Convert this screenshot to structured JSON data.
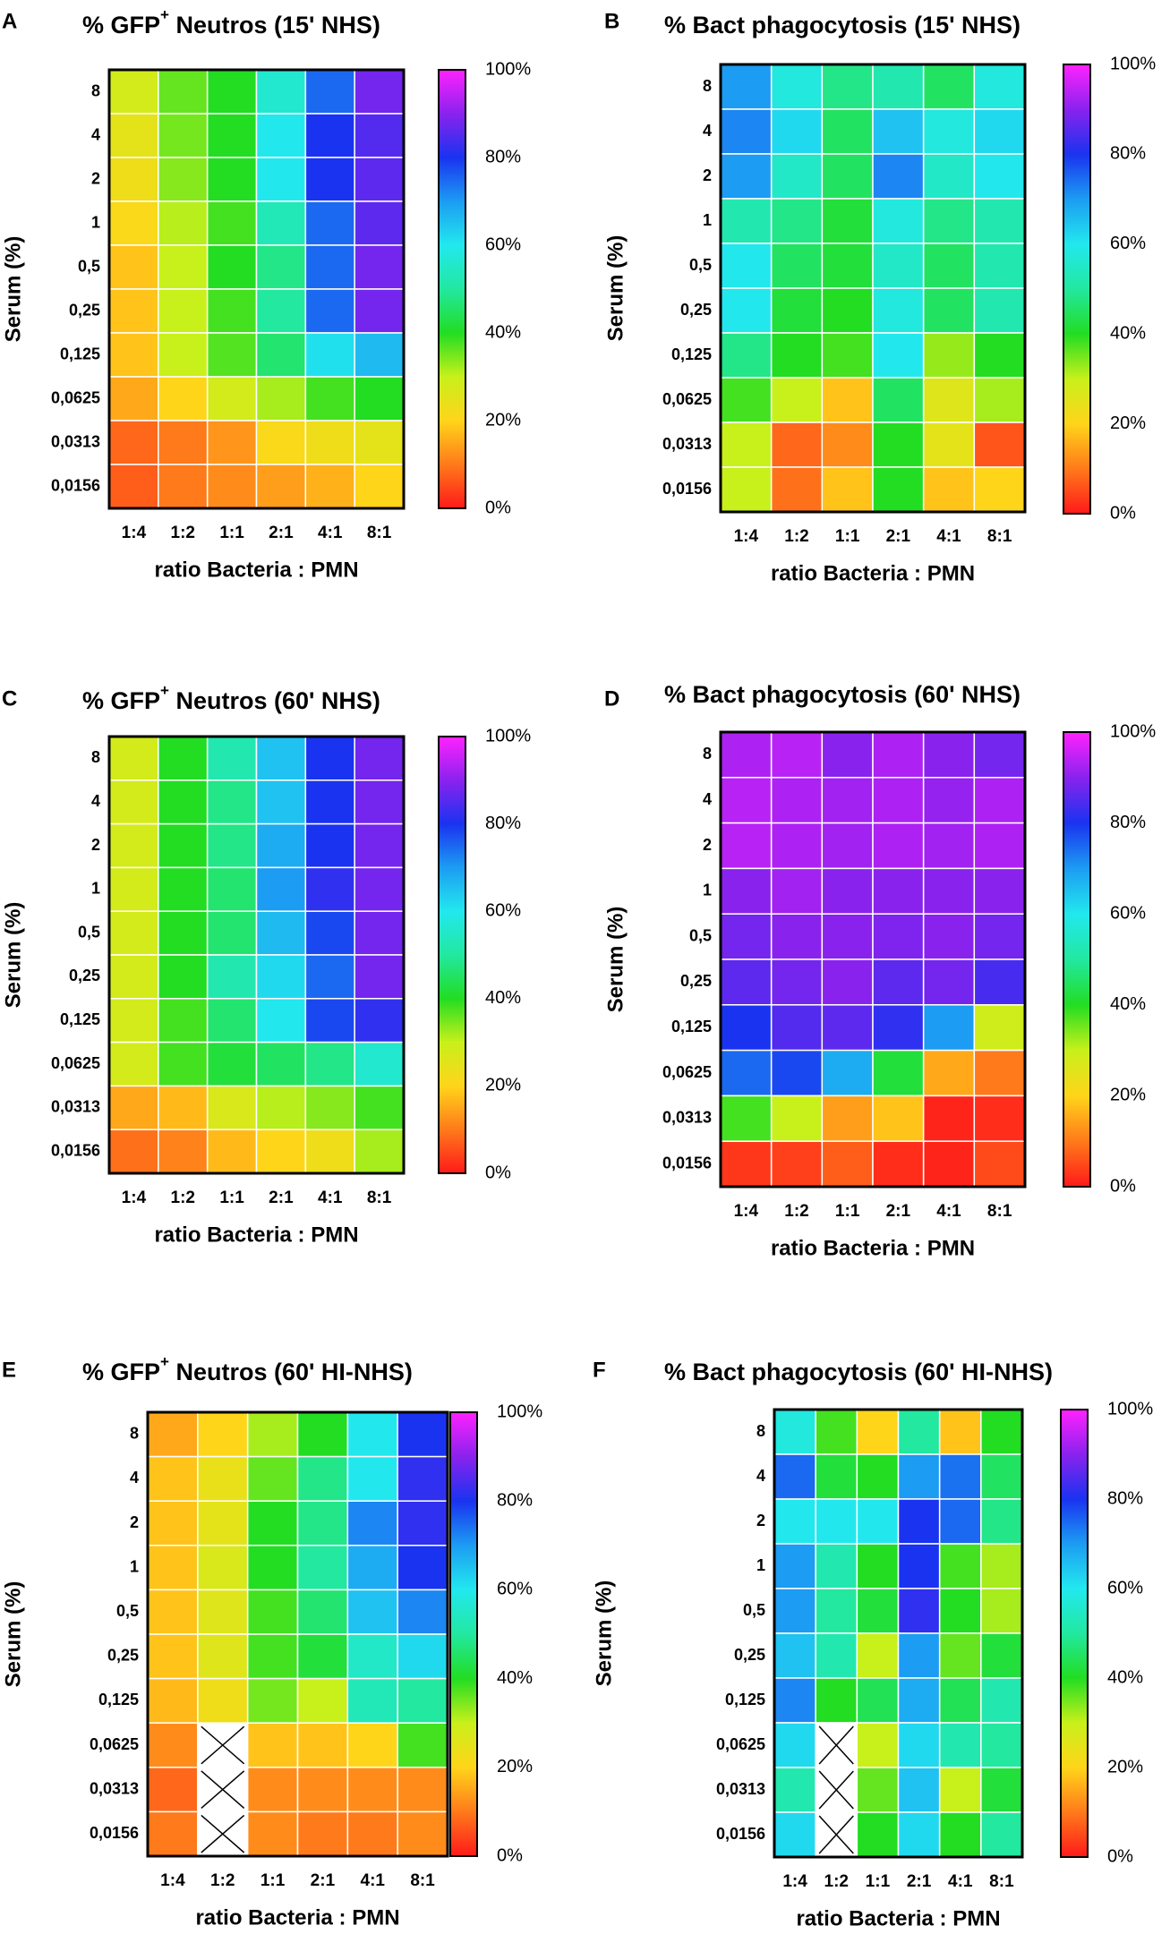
{
  "figure": {
    "colorbar_ticks": [
      "0%",
      "20%",
      "40%",
      "60%",
      "80%",
      "100%"
    ]
  },
  "colors": {
    "0": "#ff1a1a",
    "10": "#ff7a1a",
    "20": "#ffd51a",
    "30": "#c8f01a",
    "40": "#22dd22",
    "50": "#22e8a0",
    "60": "#22e8ee",
    "70": "#1c9cf2",
    "80": "#1a33f0",
    "90": "#8a22ee",
    "100": "#ff22ff",
    "missing": "#ffffff"
  },
  "chart_data": [
    {
      "type": "heatmap",
      "letter": "A",
      "title_pre": "% GFP",
      "title_sup": "+",
      "title_post": " Neutros (15' NHS)",
      "xlabel": "ratio Bacteria : PMN",
      "ylabel": "Serum (%)",
      "categories_x": [
        "1:4",
        "1:2",
        "1:1",
        "2:1",
        "4:1",
        "8:1"
      ],
      "categories_y": [
        "8",
        "4",
        "2",
        "1",
        "0,5",
        "0,25",
        "0,125",
        "0,0625",
        "0,0313",
        "0,0156"
      ],
      "values": [
        [
          28,
          36,
          40,
          56,
          75,
          88
        ],
        [
          25,
          35,
          40,
          60,
          80,
          85
        ],
        [
          23,
          34,
          40,
          60,
          80,
          86
        ],
        [
          21,
          31,
          38,
          53,
          75,
          86
        ],
        [
          18,
          30,
          40,
          48,
          75,
          88
        ],
        [
          18,
          30,
          38,
          50,
          75,
          88
        ],
        [
          18,
          30,
          37,
          46,
          61,
          66
        ],
        [
          15,
          20,
          28,
          32,
          38,
          40
        ],
        [
          8,
          10,
          13,
          21,
          23,
          25
        ],
        [
          7,
          10,
          12,
          14,
          16,
          20
        ]
      ]
    },
    {
      "type": "heatmap",
      "letter": "B",
      "title_pre": "% Bact phagocytosis (15' NHS)",
      "title_sup": "",
      "title_post": "",
      "xlabel": "ratio Bacteria : PMN",
      "ylabel": "Serum (%)",
      "categories_x": [
        "1:4",
        "1:2",
        "1:1",
        "2:1",
        "4:1",
        "8:1"
      ],
      "categories_y": [
        "8",
        "4",
        "2",
        "1",
        "0,5",
        "0,25",
        "0,125",
        "0,0625",
        "0,0313",
        "0,0156"
      ],
      "values": [
        [
          70,
          58,
          48,
          52,
          45,
          58
        ],
        [
          72,
          62,
          45,
          65,
          58,
          62
        ],
        [
          70,
          55,
          45,
          72,
          55,
          60
        ],
        [
          52,
          48,
          42,
          58,
          48,
          52
        ],
        [
          60,
          45,
          42,
          55,
          45,
          52
        ],
        [
          60,
          42,
          40,
          58,
          45,
          52
        ],
        [
          48,
          40,
          38,
          60,
          33,
          40
        ],
        [
          38,
          30,
          18,
          45,
          26,
          32
        ],
        [
          30,
          8,
          12,
          40,
          25,
          6
        ],
        [
          30,
          9,
          18,
          40,
          18,
          20
        ]
      ]
    },
    {
      "type": "heatmap",
      "letter": "C",
      "title_pre": "% GFP",
      "title_sup": "+",
      "title_post": " Neutros (60' NHS)",
      "xlabel": "ratio Bacteria : PMN",
      "ylabel": "Serum (%)",
      "categories_x": [
        "1:4",
        "1:2",
        "1:1",
        "2:1",
        "4:1",
        "8:1"
      ],
      "categories_y": [
        "8",
        "4",
        "2",
        "1",
        "0,5",
        "0,25",
        "0,125",
        "0,0625",
        "0,0313",
        "0,0156"
      ],
      "values": [
        [
          28,
          40,
          52,
          65,
          80,
          88
        ],
        [
          28,
          40,
          48,
          65,
          80,
          88
        ],
        [
          28,
          40,
          48,
          68,
          80,
          88
        ],
        [
          28,
          40,
          46,
          70,
          82,
          88
        ],
        [
          28,
          40,
          46,
          66,
          78,
          88
        ],
        [
          28,
          40,
          52,
          62,
          75,
          88
        ],
        [
          28,
          38,
          46,
          60,
          78,
          82
        ],
        [
          28,
          38,
          42,
          45,
          48,
          56
        ],
        [
          15,
          17,
          27,
          31,
          34,
          38
        ],
        [
          9,
          11,
          17,
          20,
          23,
          32
        ]
      ]
    },
    {
      "type": "heatmap",
      "letter": "D",
      "title_pre": "% Bact phagocytosis (60' NHS)",
      "title_sup": "",
      "title_post": "",
      "xlabel": "ratio Bacteria : PMN",
      "ylabel": "Serum (%)",
      "categories_x": [
        "1:4",
        "1:2",
        "1:1",
        "2:1",
        "4:1",
        "8:1"
      ],
      "categories_y": [
        "8",
        "4",
        "2",
        "1",
        "0,5",
        "0,25",
        "0,125",
        "0,0625",
        "0,0313",
        "0,0156"
      ],
      "values": [
        [
          93,
          94,
          90,
          93,
          90,
          88
        ],
        [
          94,
          93,
          92,
          93,
          91,
          93
        ],
        [
          94,
          93,
          92,
          93,
          92,
          93
        ],
        [
          90,
          92,
          90,
          90,
          90,
          90
        ],
        [
          88,
          90,
          90,
          89,
          90,
          88
        ],
        [
          86,
          88,
          90,
          86,
          88,
          84
        ],
        [
          80,
          85,
          86,
          82,
          70,
          29
        ],
        [
          75,
          78,
          68,
          42,
          15,
          10
        ],
        [
          38,
          30,
          14,
          18,
          1,
          2
        ],
        [
          3,
          4,
          7,
          2,
          1,
          5
        ]
      ]
    },
    {
      "type": "heatmap",
      "letter": "E",
      "title_pre": "% GFP",
      "title_sup": "+",
      "title_post": " Neutros (60' HI-NHS)",
      "xlabel": "ratio Bacteria : PMN",
      "ylabel": "Serum (%)",
      "categories_x": [
        "1:4",
        "1:2",
        "1:1",
        "2:1",
        "4:1",
        "8:1"
      ],
      "categories_y": [
        "8",
        "4",
        "2",
        "1",
        "0,5",
        "0,25",
        "0,125",
        "0,0625",
        "0,0313",
        "0,0156"
      ],
      "values": [
        [
          15,
          20,
          32,
          40,
          60,
          80
        ],
        [
          18,
          24,
          36,
          48,
          60,
          82
        ],
        [
          18,
          25,
          40,
          48,
          72,
          82
        ],
        [
          18,
          27,
          40,
          50,
          68,
          80
        ],
        [
          18,
          26,
          38,
          46,
          65,
          72
        ],
        [
          18,
          26,
          38,
          42,
          55,
          62
        ],
        [
          17,
          23,
          35,
          30,
          53,
          50
        ],
        [
          12,
          null,
          18,
          18,
          20,
          38
        ],
        [
          8,
          null,
          12,
          12,
          12,
          12
        ],
        [
          10,
          null,
          12,
          10,
          10,
          12
        ]
      ]
    },
    {
      "type": "heatmap",
      "letter": "F",
      "title_pre": "% Bact phagocytosis (60' HI-NHS)",
      "title_sup": "",
      "title_post": "",
      "xlabel": "ratio Bacteria : PMN",
      "ylabel": "Serum (%)",
      "categories_x": [
        "1:4",
        "1:2",
        "1:1",
        "2:1",
        "4:1",
        "8:1"
      ],
      "categories_y": [
        "8",
        "4",
        "2",
        "1",
        "0,5",
        "0,25",
        "0,125",
        "0,0625",
        "0,0313",
        "0,0156"
      ],
      "values": [
        [
          58,
          38,
          20,
          50,
          18,
          40
        ],
        [
          75,
          42,
          40,
          70,
          74,
          45
        ],
        [
          60,
          60,
          60,
          80,
          75,
          48
        ],
        [
          70,
          52,
          40,
          80,
          38,
          32
        ],
        [
          70,
          50,
          42,
          82,
          40,
          32
        ],
        [
          65,
          52,
          30,
          70,
          36,
          42
        ],
        [
          72,
          40,
          44,
          68,
          44,
          52
        ],
        [
          62,
          null,
          30,
          62,
          52,
          50
        ],
        [
          52,
          null,
          36,
          65,
          30,
          42
        ],
        [
          62,
          null,
          40,
          62,
          40,
          50
        ]
      ]
    }
  ]
}
